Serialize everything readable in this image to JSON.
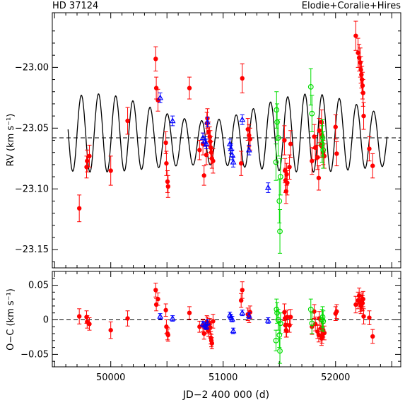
{
  "header": {
    "star": "HD 37124",
    "instruments": "Elodie+Coralie+Hires"
  },
  "xaxis": {
    "label": "JD−2 400 000 (d)",
    "range": [
      49480,
      52580
    ],
    "ticks": [
      "50000",
      "51000",
      "52000"
    ],
    "tick_values": [
      50000,
      51000,
      52000
    ]
  },
  "top_panel": {
    "ylabel": "RV (km s⁻¹)",
    "range": [
      -23.165,
      -22.955
    ],
    "ticks": [
      "−23.00",
      "−23.05",
      "−23.10",
      "−23.15"
    ],
    "tick_values": [
      -23.0,
      -23.05,
      -23.1,
      -23.15
    ],
    "systemic": -23.058
  },
  "bottom_panel": {
    "ylabel": "O−C (km s⁻¹)",
    "range": [
      -0.068,
      0.07
    ],
    "ticks": [
      "0.05",
      "0",
      "−0.05"
    ],
    "tick_values": [
      0.05,
      0,
      -0.05
    ]
  },
  "chart_data": {
    "type": "scatter",
    "series": [
      {
        "instrument": "Hires",
        "color": "#ff0000",
        "marker": "filled-circle",
        "x": [
          49720,
          49785,
          49790,
          49810,
          50000,
          50150,
          50400,
          50405,
          50420,
          50490,
          50495,
          50505,
          50510,
          50700,
          50790,
          50820,
          50830,
          50850,
          50855,
          50860,
          50870,
          50880,
          50885,
          50890,
          50895,
          50900,
          50910,
          51160,
          51170,
          51220,
          51230,
          51240,
          51545,
          51550,
          51555,
          51560,
          51565,
          51570,
          51590,
          51600,
          51790,
          51810,
          51820,
          51840,
          51850,
          51855,
          51870,
          51875,
          51880,
          51890,
          51900,
          52000,
          52010,
          52180,
          52200,
          52210,
          52220,
          52225,
          52230,
          52235,
          52240,
          52245,
          52250,
          52300,
          52330
        ],
        "y": [
          -23.116,
          -23.082,
          -23.077,
          -23.073,
          -23.085,
          -23.044,
          -22.993,
          -23.017,
          -23.027,
          -23.062,
          -23.079,
          -23.094,
          -23.098,
          -23.017,
          -23.068,
          -23.063,
          -23.089,
          -23.072,
          -23.046,
          -23.042,
          -23.053,
          -23.057,
          -23.061,
          -23.066,
          -23.07,
          -23.075,
          -23.077,
          -23.079,
          -23.009,
          -23.051,
          -23.056,
          -23.059,
          -23.06,
          -23.085,
          -23.093,
          -23.102,
          -23.088,
          -23.095,
          -23.082,
          -23.063,
          -23.077,
          -23.057,
          -23.066,
          -23.074,
          -23.091,
          -23.052,
          -23.064,
          -23.045,
          -23.056,
          -23.07,
          -23.073,
          -23.049,
          -23.071,
          -22.974,
          -22.988,
          -22.992,
          -22.996,
          -23.002,
          -23.006,
          -23.01,
          -23.015,
          -23.021,
          -23.04,
          -23.067,
          -23.081
        ],
        "oc": [
          0.005,
          0.004,
          -0.003,
          -0.006,
          -0.015,
          0.002,
          0.043,
          0.022,
          0.03,
          0.014,
          -0.01,
          -0.02,
          -0.022,
          0.01,
          -0.01,
          -0.008,
          -0.02,
          -0.012,
          -0.003,
          -0.004,
          -0.016,
          -0.006,
          -0.011,
          -0.026,
          -0.03,
          -0.034,
          -0.002,
          0.028,
          0.043,
          0.008,
          0.005,
          0.011,
          0.011,
          0.002,
          -0.008,
          -0.015,
          -0.016,
          0.004,
          -0.008,
          0.004,
          -0.01,
          0.012,
          -0.006,
          -0.017,
          -0.022,
          0.002,
          -0.012,
          -0.027,
          -0.024,
          -0.015,
          -0.019,
          0.009,
          0.012,
          0.022,
          0.028,
          0.035,
          0.024,
          0.02,
          0.025,
          0.028,
          0.024,
          0.03,
          0.005,
          0.003,
          -0.024
        ],
        "err": [
          0.011,
          0.009,
          0.009,
          0.009,
          0.012,
          0.011,
          0.01,
          0.009,
          0.009,
          0.009,
          0.01,
          0.009,
          0.009,
          0.009,
          0.008,
          0.009,
          0.008,
          0.008,
          0.009,
          0.008,
          0.008,
          0.008,
          0.009,
          0.009,
          0.009,
          0.008,
          0.01,
          0.01,
          0.012,
          0.009,
          0.009,
          0.009,
          0.012,
          0.01,
          0.01,
          0.01,
          0.009,
          0.01,
          0.01,
          0.011,
          0.011,
          0.01,
          0.01,
          0.01,
          0.01,
          0.01,
          0.01,
          0.01,
          0.01,
          0.01,
          0.01,
          0.01,
          0.01,
          0.012,
          0.012,
          0.011,
          0.012,
          0.011,
          0.011,
          0.011,
          0.011,
          0.011,
          0.011,
          0.01,
          0.01
        ]
      },
      {
        "instrument": "Elodie",
        "color": "#0000ff",
        "marker": "open-triangle",
        "x": [
          50440,
          50550,
          50820,
          50840,
          50850,
          50860,
          51060,
          51070,
          51080,
          51090,
          51170,
          51230,
          51400
        ],
        "y": [
          -23.025,
          -23.044,
          -23.058,
          -23.061,
          -23.063,
          -23.045,
          -23.063,
          -23.067,
          -23.072,
          -23.078,
          -23.043,
          -23.068,
          -23.099
        ],
        "oc": [
          0.005,
          0.002,
          -0.006,
          -0.008,
          -0.01,
          -0.004,
          0.007,
          0.004,
          0.001,
          -0.016,
          0.01,
          0.006,
          -0.001
        ],
        "err": [
          0.004,
          0.004,
          0.004,
          0.004,
          0.004,
          0.004,
          0.004,
          0.004,
          0.004,
          0.004,
          0.004,
          0.004,
          0.004
        ]
      },
      {
        "instrument": "Coralie",
        "color": "#00dd00",
        "marker": "open-circle",
        "x": [
          51470,
          51475,
          51480,
          51490,
          51500,
          51505,
          51510,
          51780,
          51790,
          51880,
          51885,
          51890
        ],
        "y": [
          -23.078,
          -23.035,
          -23.045,
          -23.058,
          -23.11,
          -23.135,
          -23.09,
          -23.016,
          -23.038,
          -23.063,
          -23.058,
          -23.068
        ],
        "oc": [
          -0.03,
          0.015,
          0.01,
          0.0,
          -0.022,
          -0.045,
          -0.005,
          0.015,
          -0.005,
          0.0,
          0.004,
          -0.002
        ],
        "err": [
          0.015,
          0.015,
          0.015,
          0.015,
          0.018,
          0.018,
          0.015,
          0.015,
          0.015,
          0.015,
          0.015,
          0.015
        ]
      }
    ]
  }
}
